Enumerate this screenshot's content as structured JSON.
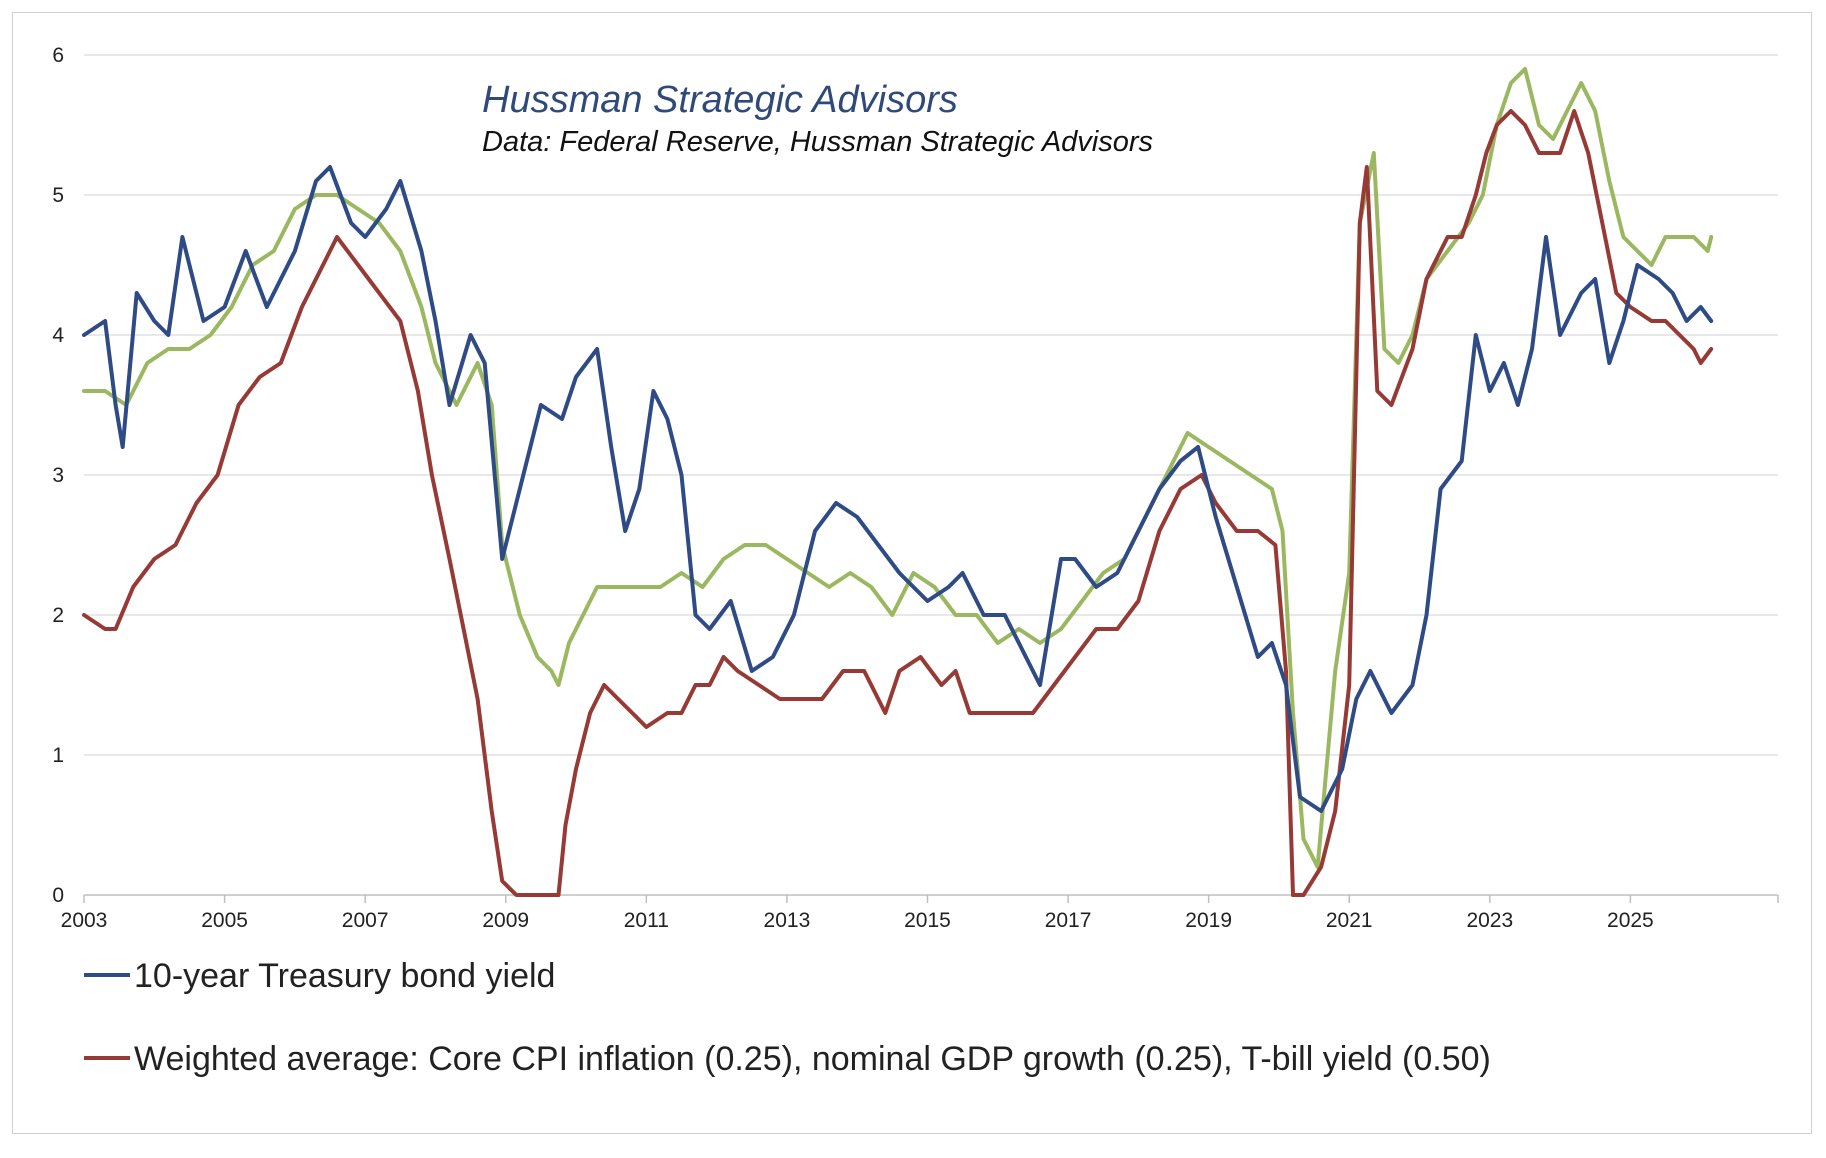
{
  "chart_data": {
    "type": "line",
    "title": "",
    "annotations": [
      "Hussman Strategic Advisors",
      "Data: Federal Reserve, Hussman Strategic Advisors"
    ],
    "xlabel": "",
    "ylabel": "",
    "xlim": [
      2003,
      2027.1
    ],
    "ylim": [
      0,
      6
    ],
    "x_ticks": [
      "2003",
      "2005",
      "2007",
      "2009",
      "2011",
      "2013",
      "2015",
      "2017",
      "2019",
      "2021",
      "2023",
      "2025"
    ],
    "y_ticks": [
      "0",
      "1",
      "2",
      "3",
      "4",
      "5",
      "6"
    ],
    "grid": true,
    "legend_position": "bottom",
    "series": [
      {
        "name": "10-year Treasury bond yield",
        "color": "#2e4b86",
        "in_legend": true,
        "x": [
          2003.0,
          2003.3,
          2003.45,
          2003.55,
          2003.75,
          2004.0,
          2004.2,
          2004.4,
          2004.7,
          2005.0,
          2005.3,
          2005.6,
          2006.0,
          2006.3,
          2006.5,
          2006.8,
          2007.0,
          2007.3,
          2007.5,
          2007.8,
          2008.0,
          2008.2,
          2008.5,
          2008.7,
          2008.95,
          2009.2,
          2009.5,
          2009.8,
          2010.0,
          2010.3,
          2010.5,
          2010.7,
          2010.9,
          2011.1,
          2011.3,
          2011.5,
          2011.7,
          2011.9,
          2012.2,
          2012.5,
          2012.8,
          2013.1,
          2013.4,
          2013.7,
          2014.0,
          2014.3,
          2014.6,
          2015.0,
          2015.3,
          2015.5,
          2015.8,
          2016.1,
          2016.4,
          2016.6,
          2016.9,
          2017.1,
          2017.4,
          2017.7,
          2018.0,
          2018.3,
          2018.6,
          2018.85,
          2019.1,
          2019.4,
          2019.7,
          2019.9,
          2020.1,
          2020.3,
          2020.6,
          2020.9,
          2021.1,
          2021.3,
          2021.6,
          2021.9,
          2022.1,
          2022.3,
          2022.6,
          2022.8,
          2023.0,
          2023.2,
          2023.4,
          2023.6,
          2023.8,
          2024.0,
          2024.3,
          2024.5,
          2024.7,
          2024.9,
          2025.1,
          2025.4,
          2025.6,
          2025.8,
          2026.0,
          2026.15
        ],
        "y": [
          4.0,
          4.1,
          3.5,
          3.2,
          4.3,
          4.1,
          4.0,
          4.7,
          4.1,
          4.2,
          4.6,
          4.2,
          4.6,
          5.1,
          5.2,
          4.8,
          4.7,
          4.9,
          5.1,
          4.6,
          4.1,
          3.5,
          4.0,
          3.8,
          2.4,
          2.9,
          3.5,
          3.4,
          3.7,
          3.9,
          3.2,
          2.6,
          2.9,
          3.6,
          3.4,
          3.0,
          2.0,
          1.9,
          2.1,
          1.6,
          1.7,
          2.0,
          2.6,
          2.8,
          2.7,
          2.5,
          2.3,
          2.1,
          2.2,
          2.3,
          2.0,
          2.0,
          1.7,
          1.5,
          2.4,
          2.4,
          2.2,
          2.3,
          2.6,
          2.9,
          3.1,
          3.2,
          2.7,
          2.2,
          1.7,
          1.8,
          1.5,
          0.7,
          0.6,
          0.9,
          1.4,
          1.6,
          1.3,
          1.5,
          2.0,
          2.9,
          3.1,
          4.0,
          3.6,
          3.8,
          3.5,
          3.9,
          4.7,
          4.0,
          4.3,
          4.4,
          3.8,
          4.1,
          4.5,
          4.4,
          4.3,
          4.1,
          4.2,
          4.1
        ]
      },
      {
        "name": "Weighted average: Core CPI inflation (0.25), nominal GDP growth (0.25), T-bill yield (0.50)",
        "color": "#973a35",
        "in_legend": true,
        "x": [
          2003.0,
          2003.3,
          2003.45,
          2003.7,
          2004.0,
          2004.3,
          2004.6,
          2004.9,
          2005.2,
          2005.5,
          2005.8,
          2006.1,
          2006.4,
          2006.6,
          2006.9,
          2007.2,
          2007.5,
          2007.75,
          2007.95,
          2008.2,
          2008.4,
          2008.6,
          2008.8,
          2008.95,
          2009.15,
          2009.4,
          2009.6,
          2009.75,
          2009.85,
          2010.0,
          2010.2,
          2010.4,
          2010.6,
          2010.8,
          2011.0,
          2011.3,
          2011.5,
          2011.7,
          2011.9,
          2012.1,
          2012.3,
          2012.6,
          2012.9,
          2013.2,
          2013.5,
          2013.8,
          2014.1,
          2014.4,
          2014.6,
          2014.9,
          2015.2,
          2015.4,
          2015.6,
          2015.9,
          2016.2,
          2016.5,
          2016.8,
          2017.1,
          2017.4,
          2017.7,
          2018.0,
          2018.3,
          2018.6,
          2018.9,
          2019.1,
          2019.4,
          2019.7,
          2019.95,
          2020.1,
          2020.2,
          2020.35,
          2020.6,
          2020.8,
          2021.0,
          2021.15,
          2021.25,
          2021.4,
          2021.6,
          2021.9,
          2022.1,
          2022.4,
          2022.6,
          2022.8,
          2022.95,
          2023.1,
          2023.3,
          2023.5,
          2023.7,
          2024.0,
          2024.2,
          2024.4,
          2024.6,
          2024.8,
          2025.0,
          2025.3,
          2025.5,
          2025.7,
          2025.9,
          2026.0,
          2026.15
        ],
        "y": [
          2.0,
          1.9,
          1.9,
          2.2,
          2.4,
          2.5,
          2.8,
          3.0,
          3.5,
          3.7,
          3.8,
          4.2,
          4.5,
          4.7,
          4.5,
          4.3,
          4.1,
          3.6,
          3.0,
          2.4,
          1.9,
          1.4,
          0.6,
          0.1,
          0.0,
          0.0,
          0.0,
          0.0,
          0.5,
          0.9,
          1.3,
          1.5,
          1.4,
          1.3,
          1.2,
          1.3,
          1.3,
          1.5,
          1.5,
          1.7,
          1.6,
          1.5,
          1.4,
          1.4,
          1.4,
          1.6,
          1.6,
          1.3,
          1.6,
          1.7,
          1.5,
          1.6,
          1.3,
          1.3,
          1.3,
          1.3,
          1.5,
          1.7,
          1.9,
          1.9,
          2.1,
          2.6,
          2.9,
          3.0,
          2.8,
          2.6,
          2.6,
          2.5,
          1.6,
          0.0,
          0.0,
          0.2,
          0.6,
          1.5,
          4.8,
          5.2,
          3.6,
          3.5,
          3.9,
          4.4,
          4.7,
          4.7,
          5.0,
          5.3,
          5.5,
          5.6,
          5.5,
          5.3,
          5.3,
          5.6,
          5.3,
          4.8,
          4.3,
          4.2,
          4.1,
          4.1,
          4.0,
          3.9,
          3.8,
          3.9
        ]
      },
      {
        "name": "",
        "color": "#9bb860",
        "in_legend": false,
        "x": [
          2003.0,
          2003.3,
          2003.6,
          2003.9,
          2004.2,
          2004.5,
          2004.8,
          2005.1,
          2005.4,
          2005.7,
          2006.0,
          2006.3,
          2006.6,
          2006.9,
          2007.2,
          2007.5,
          2007.8,
          2008.0,
          2008.3,
          2008.6,
          2008.8,
          2008.95,
          2009.2,
          2009.45,
          2009.65,
          2009.75,
          2009.9,
          2010.1,
          2010.3,
          2010.6,
          2010.9,
          2011.2,
          2011.5,
          2011.8,
          2012.1,
          2012.4,
          2012.7,
          2013.0,
          2013.3,
          2013.6,
          2013.9,
          2014.2,
          2014.5,
          2014.8,
          2015.1,
          2015.4,
          2015.7,
          2016.0,
          2016.3,
          2016.6,
          2016.9,
          2017.2,
          2017.5,
          2017.8,
          2018.1,
          2018.4,
          2018.7,
          2019.0,
          2019.3,
          2019.6,
          2019.9,
          2020.05,
          2020.2,
          2020.35,
          2020.55,
          2020.8,
          2021.0,
          2021.15,
          2021.35,
          2021.5,
          2021.7,
          2021.9,
          2022.1,
          2022.4,
          2022.7,
          2022.9,
          2023.1,
          2023.3,
          2023.5,
          2023.7,
          2023.9,
          2024.1,
          2024.3,
          2024.5,
          2024.7,
          2024.9,
          2025.1,
          2025.3,
          2025.5,
          2025.7,
          2025.9,
          2026.1,
          2026.15
        ],
        "y": [
          3.6,
          3.6,
          3.5,
          3.8,
          3.9,
          3.9,
          4.0,
          4.2,
          4.5,
          4.6,
          4.9,
          5.0,
          5.0,
          4.9,
          4.8,
          4.6,
          4.2,
          3.8,
          3.5,
          3.8,
          3.5,
          2.5,
          2.0,
          1.7,
          1.6,
          1.5,
          1.8,
          2.0,
          2.2,
          2.2,
          2.2,
          2.2,
          2.3,
          2.2,
          2.4,
          2.5,
          2.5,
          2.4,
          2.3,
          2.2,
          2.3,
          2.2,
          2.0,
          2.3,
          2.2,
          2.0,
          2.0,
          1.8,
          1.9,
          1.8,
          1.9,
          2.1,
          2.3,
          2.4,
          2.7,
          3.0,
          3.3,
          3.2,
          3.1,
          3.0,
          2.9,
          2.6,
          1.3,
          0.4,
          0.2,
          1.6,
          2.3,
          4.8,
          5.3,
          3.9,
          3.8,
          4.0,
          4.4,
          4.6,
          4.8,
          5.0,
          5.5,
          5.8,
          5.9,
          5.5,
          5.4,
          5.6,
          5.8,
          5.6,
          5.1,
          4.7,
          4.6,
          4.5,
          4.7,
          4.7,
          4.7,
          4.6,
          4.7
        ]
      }
    ]
  }
}
